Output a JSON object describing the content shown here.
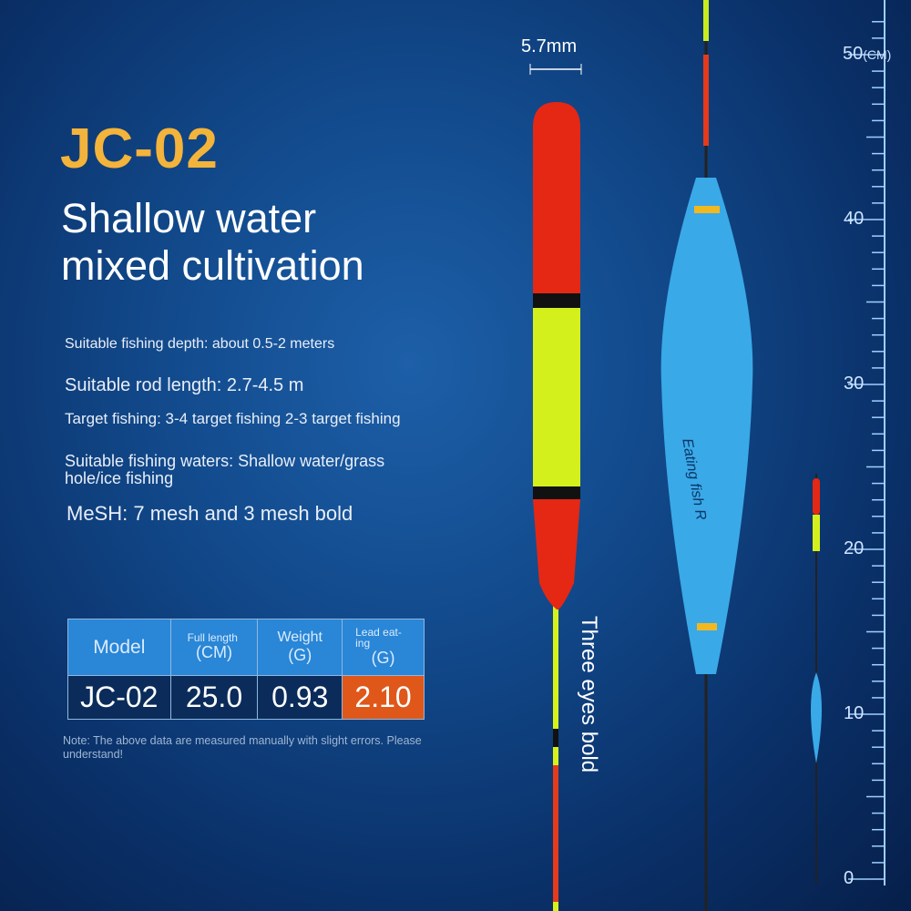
{
  "product": {
    "model": "JC-02",
    "subtitle_line1": "Shallow water",
    "subtitle_line2": "mixed cultivation"
  },
  "specs": [
    "Suitable fishing depth: about 0.5-2 meters",
    "Suitable rod length: 2.7-4.5 m",
    "Target fishing: 3-4 target fishing 2-3 target fishing",
    "Suitable fishing waters: Shallow water/grass hole/ice fishing",
    "MeSH: 7 mesh and 3 mesh bold"
  ],
  "table": {
    "headers": [
      {
        "label": "Model",
        "unit": ""
      },
      {
        "label": "Full length",
        "unit": "(CM)"
      },
      {
        "label": "Weight",
        "unit": "(G)"
      },
      {
        "label": "Lead eat-ing",
        "unit": "(G)"
      }
    ],
    "row": [
      "JC-02",
      "25.0",
      "0.93",
      "2.10"
    ]
  },
  "note": "Note: The above data are measured manually with slight errors. Please understand!",
  "float_labels": {
    "diameter": "5.7mm",
    "eyes": "Three eyes bold",
    "body_text": "Eating fish R"
  },
  "ruler": {
    "unit": "(CM)",
    "labels": [
      "50",
      "40",
      "30",
      "20",
      "10",
      "0"
    ]
  },
  "colors": {
    "accent": "#f4b33a",
    "highlight": "#e0571a",
    "header": "#2a86d6"
  }
}
